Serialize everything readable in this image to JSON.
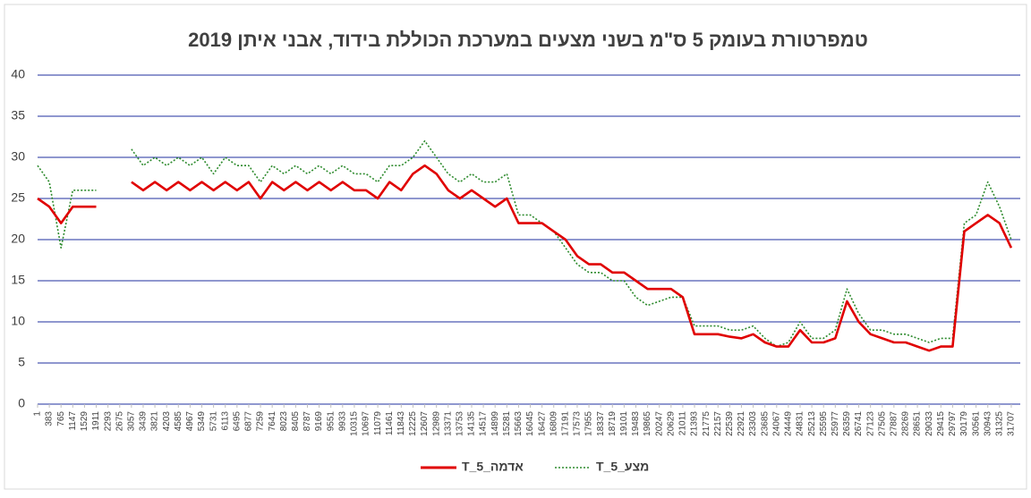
{
  "chart_data": {
    "type": "line",
    "title": "טמפרטורת בעומק 5 ס\"מ בשני מצעים במערכת הכוללת בידוד, אבני איתן 2019",
    "x": [
      1,
      383,
      765,
      1147,
      1529,
      1911,
      2293,
      2675,
      3057,
      3439,
      3821,
      4203,
      4585,
      4967,
      5349,
      5731,
      6113,
      6495,
      6877,
      7259,
      7641,
      8023,
      8405,
      8787,
      9169,
      9551,
      9933,
      10315,
      10697,
      11079,
      11461,
      11843,
      12225,
      12607,
      12989,
      13371,
      13753,
      14135,
      14517,
      14899,
      15281,
      15663,
      16045,
      16427,
      16809,
      17191,
      17573,
      17955,
      18337,
      18719,
      19101,
      19483,
      19865,
      20247,
      20629,
      21011,
      21393,
      21775,
      22157,
      22539,
      22921,
      23303,
      23685,
      24067,
      24449,
      24831,
      25213,
      25595,
      25977,
      26359,
      26741,
      27123,
      27505,
      27887,
      28269,
      28651,
      29033,
      29415,
      29797,
      30179,
      30561,
      30943,
      31325,
      31707
    ],
    "series": [
      {
        "name": "T_5_אדמה",
        "color": "#e00000",
        "dash": false,
        "values": [
          25,
          24,
          22,
          24,
          24,
          24,
          null,
          null,
          27,
          26,
          27,
          26,
          27,
          26,
          27,
          26,
          27,
          26,
          27,
          25,
          27,
          26,
          27,
          26,
          27,
          26,
          27,
          26,
          26,
          25,
          27,
          26,
          28,
          29,
          28,
          26,
          25,
          26,
          25,
          24,
          25,
          22,
          22,
          22,
          21,
          20,
          18,
          17,
          17,
          16,
          16,
          15,
          14,
          14,
          14,
          13,
          8.5,
          8.5,
          8.5,
          8.2,
          8,
          8.5,
          7.5,
          7,
          7,
          9,
          7.5,
          7.5,
          8,
          12.5,
          10,
          8.5,
          8,
          7.5,
          7.5,
          7,
          6.5,
          7,
          7,
          21,
          22,
          23,
          22,
          19
        ]
      },
      {
        "name": "T_5_מצע",
        "color": "#2e8b2e",
        "dash": true,
        "values": [
          29,
          27,
          19,
          26,
          26,
          26,
          null,
          null,
          31,
          29,
          30,
          29,
          30,
          29,
          30,
          28,
          30,
          29,
          29,
          27,
          29,
          28,
          29,
          28,
          29,
          28,
          29,
          28,
          28,
          27,
          29,
          29,
          30,
          32,
          30,
          28,
          27,
          28,
          27,
          27,
          28,
          23,
          23,
          22,
          21,
          19,
          17,
          16,
          16,
          15,
          15,
          13,
          12,
          12.5,
          13,
          13,
          9.5,
          9.5,
          9.5,
          9,
          9,
          9.5,
          8,
          7,
          7.5,
          10,
          8,
          8,
          9,
          14,
          11,
          9,
          9,
          8.5,
          8.5,
          8,
          7.5,
          8,
          8,
          22,
          23,
          27,
          24,
          20
        ]
      }
    ],
    "xlim": [
      1,
      32000
    ],
    "xticks": [
      1,
      383,
      765,
      1147,
      1529,
      1911,
      2293,
      2675,
      3057,
      3439,
      3821,
      4203,
      4585,
      4967,
      5349,
      5731,
      6113,
      6495,
      6877,
      7259,
      7641,
      8023,
      8405,
      8787,
      9169,
      9551,
      9933,
      10315,
      10697,
      11079,
      11461,
      11843,
      12225,
      12607,
      12989,
      13371,
      13753,
      14135,
      14517,
      14899,
      15281,
      15663,
      16045,
      16427,
      16809,
      17191,
      17573,
      17955,
      18337,
      18719,
      19101,
      19483,
      19865,
      20247,
      20629,
      21011,
      21393,
      21775,
      22157,
      22539,
      22921,
      23303,
      23685,
      24067,
      24449,
      24831,
      25213,
      25595,
      25977,
      26359,
      26741,
      27123,
      27505,
      27887,
      28269,
      28651,
      29033,
      29415,
      29797,
      30179,
      30561,
      30943,
      31325,
      31707
    ],
    "ylim": [
      0,
      40
    ],
    "yticks": [
      0,
      5,
      10,
      15,
      20,
      25,
      30,
      35,
      40
    ],
    "grid": true,
    "legend": "bottom"
  }
}
